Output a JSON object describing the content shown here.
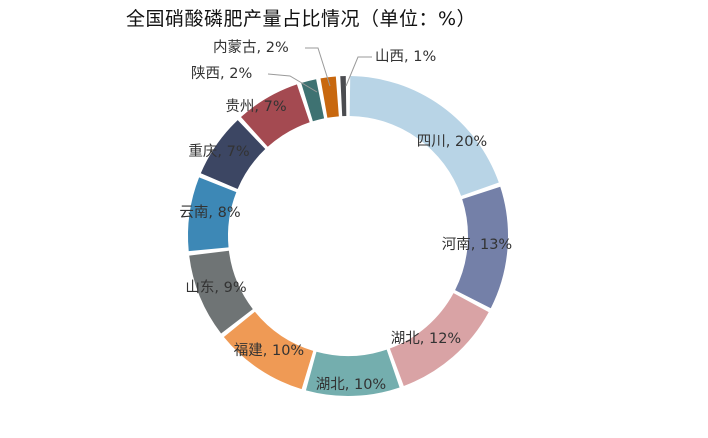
{
  "chart_data": {
    "type": "pie",
    "variant": "donut",
    "title": "全国硝酸磷肥产量占比情况（单位：%）",
    "legend": "none",
    "start_position": "top",
    "direction": "clockwise",
    "slices": [
      {
        "label": "四川, 20%",
        "value": 20,
        "color": "#b8d4e6"
      },
      {
        "label": "河南, 13%",
        "value": 13,
        "color": "#7480a8"
      },
      {
        "label": "湖北, 12%",
        "value": 12,
        "color": "#d9a3a5"
      },
      {
        "label": "湖北, 10%",
        "value": 10,
        "color": "#74aeae"
      },
      {
        "label": "福建, 10%",
        "value": 10,
        "color": "#ef9a55"
      },
      {
        "label": "山东, 9%",
        "value": 9,
        "color": "#6f7475"
      },
      {
        "label": "云南, 8%",
        "value": 8,
        "color": "#3d88b6"
      },
      {
        "label": "重庆, 7%",
        "value": 7,
        "color": "#3c4663"
      },
      {
        "label": "贵州, 7%",
        "value": 7,
        "color": "#a44a51"
      },
      {
        "label": "陕西, 2%",
        "value": 2,
        "color": "#3e7272"
      },
      {
        "label": "内蒙古, 2%",
        "value": 2,
        "color": "#c8680f"
      },
      {
        "label": "山西, 1%",
        "value": 1,
        "color": "#4b4c50"
      }
    ]
  }
}
